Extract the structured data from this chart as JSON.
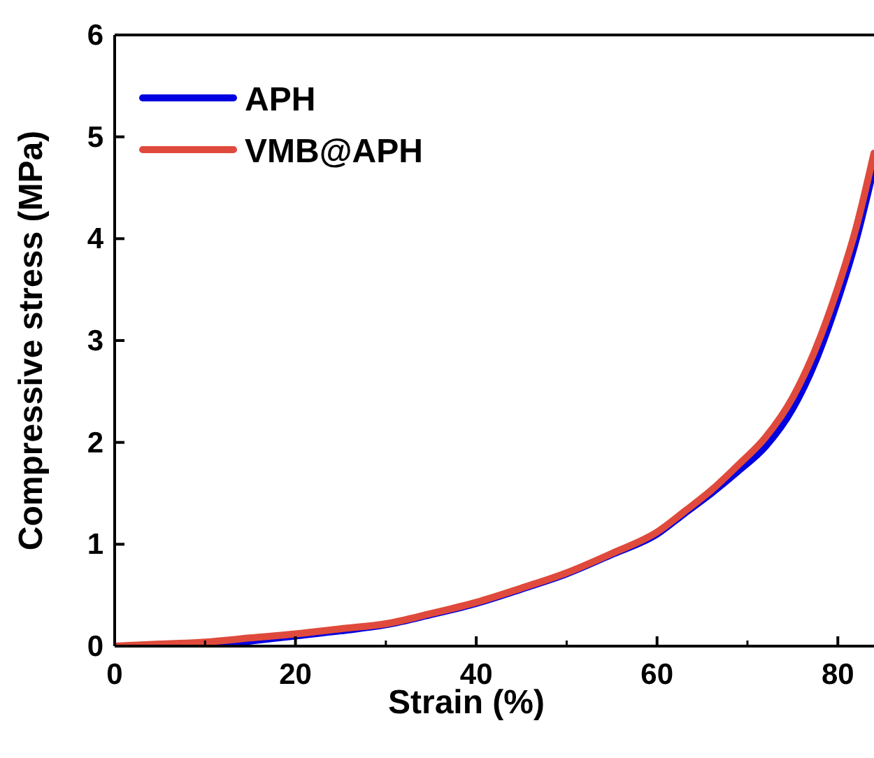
{
  "chart_data": {
    "type": "line",
    "xlabel": "Strain (%)",
    "ylabel": "Compressive stress (MPa)",
    "xlim": [
      0,
      84
    ],
    "ylim": [
      0,
      6
    ],
    "xticks": [
      0,
      20,
      40,
      60,
      80
    ],
    "yticks": [
      0,
      1,
      2,
      3,
      4,
      5,
      6
    ],
    "legend": "top left",
    "grid": false,
    "line_style": "solid",
    "series": [
      {
        "name": "APH",
        "color": "#0000e0",
        "x": [
          0,
          5,
          10,
          15,
          20,
          25,
          30,
          35,
          40,
          45,
          50,
          55,
          60,
          63,
          66,
          69,
          72,
          75,
          77.5,
          80,
          82,
          84
        ],
        "values": [
          0,
          0,
          0,
          0.05,
          0.1,
          0.15,
          0.21,
          0.31,
          0.42,
          0.56,
          0.71,
          0.9,
          1.1,
          1.3,
          1.5,
          1.72,
          1.96,
          2.33,
          2.79,
          3.4,
          3.98,
          4.7
        ]
      },
      {
        "name": "VMB@APH",
        "color": "#e04a3c",
        "x": [
          0,
          5,
          10,
          15,
          20,
          25,
          30,
          35,
          40,
          45,
          50,
          55,
          60,
          63,
          66,
          69,
          72,
          75,
          77.5,
          80,
          82,
          84
        ],
        "values": [
          0,
          0.02,
          0.04,
          0.08,
          0.12,
          0.17,
          0.22,
          0.32,
          0.43,
          0.57,
          0.72,
          0.91,
          1.12,
          1.32,
          1.53,
          1.78,
          2.05,
          2.44,
          2.91,
          3.52,
          4.1,
          4.84
        ]
      }
    ]
  }
}
